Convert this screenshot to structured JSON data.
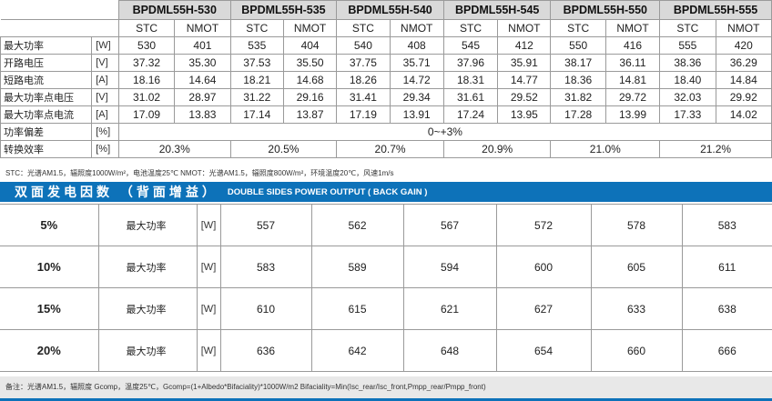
{
  "models": [
    "BPDML55H-530",
    "BPDML55H-535",
    "BPDML55H-540",
    "BPDML55H-545",
    "BPDML55H-550",
    "BPDML55H-555"
  ],
  "conditions": {
    "stc": "STC",
    "nmot": "NMOT"
  },
  "rows": [
    {
      "label": "最大功率",
      "unit": "[W]",
      "values": [
        "530",
        "401",
        "535",
        "404",
        "540",
        "408",
        "545",
        "412",
        "550",
        "416",
        "555",
        "420"
      ]
    },
    {
      "label": "开路电压",
      "unit": "[V]",
      "values": [
        "37.32",
        "35.30",
        "37.53",
        "35.50",
        "37.75",
        "35.71",
        "37.96",
        "35.91",
        "38.17",
        "36.11",
        "38.36",
        "36.29"
      ]
    },
    {
      "label": "短路电流",
      "unit": "[A]",
      "values": [
        "18.16",
        "14.64",
        "18.21",
        "14.68",
        "18.26",
        "14.72",
        "18.31",
        "14.77",
        "18.36",
        "14.81",
        "18.40",
        "14.84"
      ]
    },
    {
      "label": "最大功率点电压",
      "unit": "[V]",
      "values": [
        "31.02",
        "28.97",
        "31.22",
        "29.16",
        "31.41",
        "29.34",
        "31.61",
        "29.52",
        "31.82",
        "29.72",
        "32.03",
        "29.92"
      ]
    },
    {
      "label": "最大功率点电流",
      "unit": "[A]",
      "values": [
        "17.09",
        "13.83",
        "17.14",
        "13.87",
        "17.19",
        "13.91",
        "17.24",
        "13.95",
        "17.28",
        "13.99",
        "17.33",
        "14.02"
      ]
    }
  ],
  "tolerance": {
    "label": "功率偏差",
    "unit": "[%]",
    "value": "0~+3%"
  },
  "efficiency": {
    "label": "转换效率",
    "unit": "[%]",
    "values": [
      "20.3%",
      "20.5%",
      "20.7%",
      "20.9%",
      "21.0%",
      "21.2%"
    ]
  },
  "stc_note": "STC：光谱AM1.5，辐照度1000W/m²，电池温度25℃    NMOT：光谱AM1.5，辐照度800W/m²，环境温度20℃，风速1m/s",
  "banner": {
    "cn": "双面发电因数 （背面增益）",
    "en": "DOUBLE SIDES POWER OUTPUT ( BACK GAIN )"
  },
  "bifacial": [
    {
      "gain": "5%",
      "label": "最大功率",
      "unit": "[W]",
      "values": [
        "557",
        "562",
        "567",
        "572",
        "578",
        "583"
      ]
    },
    {
      "gain": "10%",
      "label": "最大功率",
      "unit": "[W]",
      "values": [
        "583",
        "589",
        "594",
        "600",
        "605",
        "611"
      ]
    },
    {
      "gain": "15%",
      "label": "最大功率",
      "unit": "[W]",
      "values": [
        "610",
        "615",
        "621",
        "627",
        "633",
        "638"
      ]
    },
    {
      "gain": "20%",
      "label": "最大功率",
      "unit": "[W]",
      "values": [
        "636",
        "642",
        "648",
        "654",
        "660",
        "666"
      ]
    }
  ],
  "footnote": "备注：光谱AM1.5，辐照度 Gcomp，温度25℃，Gcomp=(1+Albedo*Bifaciality)*1000W/m2 Bifaciality=Min(Isc_rear/Isc_front,Pmpp_rear/Pmpp_front)"
}
